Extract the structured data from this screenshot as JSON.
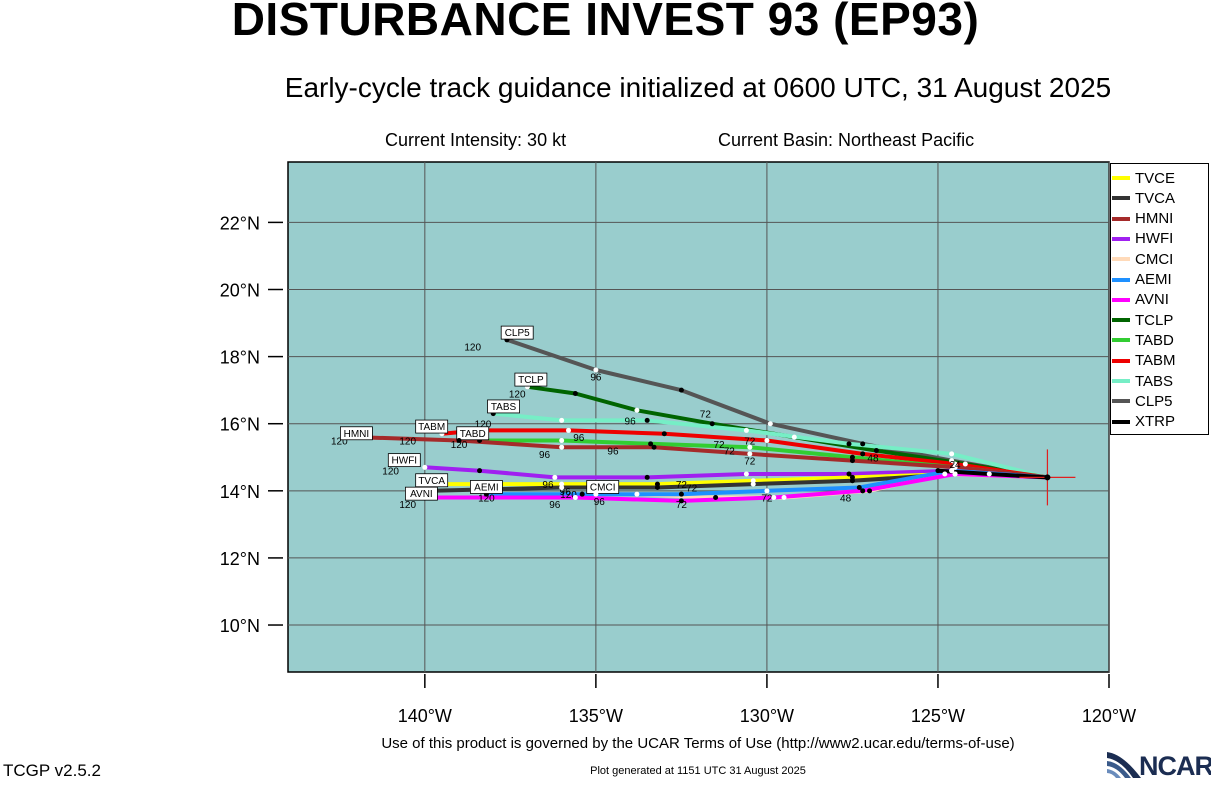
{
  "header": {
    "title": "DISTURBANCE INVEST 93 (EP93)",
    "subtitle": "Early-cycle track guidance initialized at 0600 UTC, 31 August 2025",
    "current_intensity": "Current Intensity: 30 kt",
    "current_basin": "Current Basin: Northeast Pacific"
  },
  "axes": {
    "lat_ticks": [
      "22°N",
      "20°N",
      "18°N",
      "16°N",
      "14°N",
      "12°N",
      "10°N"
    ],
    "lon_ticks": [
      "140°W",
      "135°W",
      "130°W",
      "125°W",
      "120°W"
    ],
    "lat_range": [
      8.6,
      23.8
    ],
    "lon_range": [
      -144,
      -120
    ]
  },
  "colors": {
    "ocean": "#99cdcd",
    "grid": "#555555",
    "xtrp_marker": "#e02020"
  },
  "legend": [
    {
      "name": "TVCE",
      "color": "#ffff00"
    },
    {
      "name": "TVCA",
      "color": "#333333"
    },
    {
      "name": "HMNI",
      "color": "#a52a2a"
    },
    {
      "name": "HWFI",
      "color": "#a020f0"
    },
    {
      "name": "CMCI",
      "color": "#ffdab9"
    },
    {
      "name": "AEMI",
      "color": "#1e90ff"
    },
    {
      "name": "AVNI",
      "color": "#ff00ff"
    },
    {
      "name": "TCLP",
      "color": "#006400"
    },
    {
      "name": "TABD",
      "color": "#32cd32"
    },
    {
      "name": "TABM",
      "color": "#ee0000"
    },
    {
      "name": "TABS",
      "color": "#76eec6"
    },
    {
      "name": "CLP5",
      "color": "#555555"
    },
    {
      "name": "XTRP",
      "color": "#000000"
    }
  ],
  "chart_data": {
    "type": "map-track",
    "initial_position": {
      "lon": -121.8,
      "lat": 14.4
    },
    "tracks": [
      {
        "name": "CLP5",
        "color": "#555555",
        "points": [
          [
            -121.8,
            14.4
          ],
          [
            -124.6,
            14.9
          ],
          [
            -127.2,
            15.4
          ],
          [
            -129.9,
            16.0
          ],
          [
            -132.5,
            17.0
          ],
          [
            -135.0,
            17.6
          ],
          [
            -137.6,
            18.5
          ]
        ],
        "labels": [
          {
            "text": "96",
            "lon": -135.0,
            "lat": 17.4
          },
          {
            "text": "72",
            "lon": -131.8,
            "lat": 16.3
          },
          {
            "text": "120",
            "lon": -138.6,
            "lat": 18.3
          }
        ],
        "end_label": "CLP5",
        "end_lon": -137.3,
        "end_lat": 18.7
      },
      {
        "name": "TCLP",
        "color": "#006400",
        "points": [
          [
            -121.8,
            14.4
          ],
          [
            -124.2,
            14.8
          ],
          [
            -126.8,
            15.2
          ],
          [
            -129.2,
            15.6
          ],
          [
            -131.6,
            16.0
          ],
          [
            -133.8,
            16.4
          ],
          [
            -135.6,
            16.9
          ],
          [
            -137.0,
            17.1
          ]
        ],
        "labels": [
          {
            "text": "96",
            "lon": -134.0,
            "lat": 16.1
          },
          {
            "text": "72",
            "lon": -130.5,
            "lat": 15.5
          },
          {
            "text": "120",
            "lon": -137.3,
            "lat": 16.9
          }
        ],
        "end_label": "TCLP",
        "end_lon": -136.9,
        "end_lat": 17.3
      },
      {
        "name": "TABS",
        "color": "#76eec6",
        "points": [
          [
            -121.8,
            14.4
          ],
          [
            -124.6,
            15.1
          ],
          [
            -127.6,
            15.4
          ],
          [
            -130.6,
            15.8
          ],
          [
            -133.5,
            16.1
          ],
          [
            -136.0,
            16.1
          ],
          [
            -138.0,
            16.3
          ]
        ],
        "labels": [
          {
            "text": "48",
            "lon": -126.9,
            "lat": 15.0
          },
          {
            "text": "120",
            "lon": -138.3,
            "lat": 16.0
          }
        ],
        "end_label": "TABS",
        "end_lon": -137.7,
        "end_lat": 16.5
      },
      {
        "name": "TABM",
        "color": "#ee0000",
        "points": [
          [
            -121.8,
            14.4
          ],
          [
            -124.5,
            14.8
          ],
          [
            -127.2,
            15.1
          ],
          [
            -130.0,
            15.5
          ],
          [
            -133.0,
            15.7
          ],
          [
            -135.8,
            15.8
          ],
          [
            -138.4,
            15.8
          ],
          [
            -139.5,
            15.7
          ]
        ],
        "labels": [
          {
            "text": "96",
            "lon": -135.5,
            "lat": 15.6
          },
          {
            "text": "72",
            "lon": -131.4,
            "lat": 15.4
          },
          {
            "text": "120",
            "lon": -140.5,
            "lat": 15.5
          }
        ],
        "end_label": "TABM",
        "end_lon": -139.8,
        "end_lat": 15.9
      },
      {
        "name": "TABD",
        "color": "#32cd32",
        "points": [
          [
            -121.8,
            14.4
          ],
          [
            -124.5,
            14.7
          ],
          [
            -127.5,
            15.0
          ],
          [
            -130.5,
            15.3
          ],
          [
            -133.4,
            15.4
          ],
          [
            -136.0,
            15.5
          ],
          [
            -138.4,
            15.5
          ]
        ],
        "labels": [
          {
            "text": "96",
            "lon": -136.5,
            "lat": 15.1
          },
          {
            "text": "72",
            "lon": -131.1,
            "lat": 15.2
          },
          {
            "text": "120",
            "lon": -139.0,
            "lat": 15.4
          }
        ],
        "end_label": "TABD",
        "end_lon": -138.6,
        "end_lat": 15.7
      },
      {
        "name": "HMNI",
        "color": "#a52a2a",
        "points": [
          [
            -121.8,
            14.4
          ],
          [
            -124.5,
            14.7
          ],
          [
            -127.5,
            14.9
          ],
          [
            -130.5,
            15.1
          ],
          [
            -133.3,
            15.3
          ],
          [
            -136.0,
            15.3
          ],
          [
            -139.0,
            15.5
          ],
          [
            -142.0,
            15.6
          ]
        ],
        "labels": [
          {
            "text": "96",
            "lon": -134.5,
            "lat": 15.2
          },
          {
            "text": "72",
            "lon": -130.5,
            "lat": 14.9
          },
          {
            "text": "120",
            "lon": -142.5,
            "lat": 15.5
          }
        ],
        "end_label": "HMNI",
        "end_lon": -142.0,
        "end_lat": 15.7
      },
      {
        "name": "HWFI",
        "color": "#a020f0",
        "points": [
          [
            -121.8,
            14.4
          ],
          [
            -124.6,
            14.6
          ],
          [
            -127.6,
            14.5
          ],
          [
            -130.6,
            14.5
          ],
          [
            -133.5,
            14.4
          ],
          [
            -136.2,
            14.4
          ],
          [
            -138.4,
            14.6
          ],
          [
            -140.0,
            14.7
          ]
        ],
        "labels": [
          {
            "text": "96",
            "lon": -136.4,
            "lat": 14.2
          },
          {
            "text": "72",
            "lon": -132.5,
            "lat": 14.2
          },
          {
            "text": "120",
            "lon": -141.0,
            "lat": 14.6
          }
        ],
        "end_label": "HWFI",
        "end_lon": -140.6,
        "end_lat": 14.9
      },
      {
        "name": "TVCE",
        "color": "#ffff00",
        "points": [
          [
            -121.8,
            14.4
          ],
          [
            -124.5,
            14.5
          ],
          [
            -127.5,
            14.4
          ],
          [
            -130.4,
            14.3
          ],
          [
            -133.2,
            14.2
          ],
          [
            -136.0,
            14.2
          ],
          [
            -139.8,
            14.2
          ]
        ],
        "labels": [
          {
            "text": "96",
            "lon": -135.9,
            "lat": 14.0
          },
          {
            "text": "72",
            "lon": -132.2,
            "lat": 14.1
          }
        ],
        "end_label": "TVCA",
        "end_lon": -139.8,
        "end_lat": 14.3
      },
      {
        "name": "TVCA",
        "color": "#333333",
        "points": [
          [
            -121.8,
            14.4
          ],
          [
            -124.5,
            14.5
          ],
          [
            -127.5,
            14.3
          ],
          [
            -130.4,
            14.2
          ],
          [
            -133.2,
            14.1
          ],
          [
            -136.0,
            14.1
          ],
          [
            -139.8,
            14.0
          ]
        ],
        "labels": [],
        "end_label": "",
        "end_lon": -139.8,
        "end_lat": 14.0
      },
      {
        "name": "CMCI",
        "color": "#ffdab9",
        "points": [
          [
            -121.8,
            14.4
          ],
          [
            -124.8,
            14.5
          ],
          [
            -127.0,
            14.0
          ],
          [
            -129.5,
            13.8
          ],
          [
            -131.5,
            13.8
          ],
          [
            -133.8,
            13.9
          ],
          [
            -135.4,
            13.9
          ]
        ],
        "labels": [
          {
            "text": "48",
            "lon": -127.7,
            "lat": 13.8
          },
          {
            "text": "72",
            "lon": -130.0,
            "lat": 13.8
          },
          {
            "text": "120",
            "lon": -135.8,
            "lat": 13.9
          }
        ],
        "end_label": "CMCI",
        "end_lon": -134.8,
        "end_lat": 14.1
      },
      {
        "name": "AEMI",
        "color": "#1e90ff",
        "points": [
          [
            -121.8,
            14.4
          ],
          [
            -124.6,
            14.6
          ],
          [
            -127.3,
            14.1
          ],
          [
            -130.0,
            14.0
          ],
          [
            -132.5,
            13.9
          ],
          [
            -135.0,
            13.9
          ],
          [
            -138.2,
            13.9
          ]
        ],
        "labels": [
          {
            "text": "72",
            "lon": -132.5,
            "lat": 13.6
          },
          {
            "text": "96",
            "lon": -134.9,
            "lat": 13.7
          },
          {
            "text": "120",
            "lon": -138.2,
            "lat": 13.8
          }
        ],
        "end_label": "AEMI",
        "end_lon": -138.2,
        "end_lat": 14.1
      },
      {
        "name": "AVNI",
        "color": "#ff00ff",
        "points": [
          [
            -121.8,
            14.4
          ],
          [
            -124.5,
            14.5
          ],
          [
            -127.2,
            14.0
          ],
          [
            -129.8,
            13.8
          ],
          [
            -132.5,
            13.7
          ],
          [
            -135.6,
            13.8
          ],
          [
            -140.0,
            13.8
          ]
        ],
        "labels": [
          {
            "text": "96",
            "lon": -136.2,
            "lat": 13.6
          },
          {
            "text": "120",
            "lon": -140.5,
            "lat": 13.6
          }
        ],
        "end_label": "AVNI",
        "end_lon": -140.1,
        "end_lat": 13.9
      },
      {
        "name": "XTRP",
        "color": "#000000",
        "points": [
          [
            -121.8,
            14.4
          ],
          [
            -123.5,
            14.5
          ],
          [
            -125.0,
            14.6
          ]
        ],
        "labels": [
          {
            "text": "24",
            "lon": -124.5,
            "lat": 14.8
          }
        ],
        "end_label": "",
        "end_lon": -125.0,
        "end_lat": 14.6
      }
    ]
  },
  "footer": {
    "terms": "Use of this product is governed by the UCAR Terms of Use (http://www2.ucar.edu/terms-of-use)",
    "generated": "Plot generated at 1151 UTC   31 August 2025",
    "version": "TCGP v2.5.2",
    "logo_text": "NCAR"
  }
}
